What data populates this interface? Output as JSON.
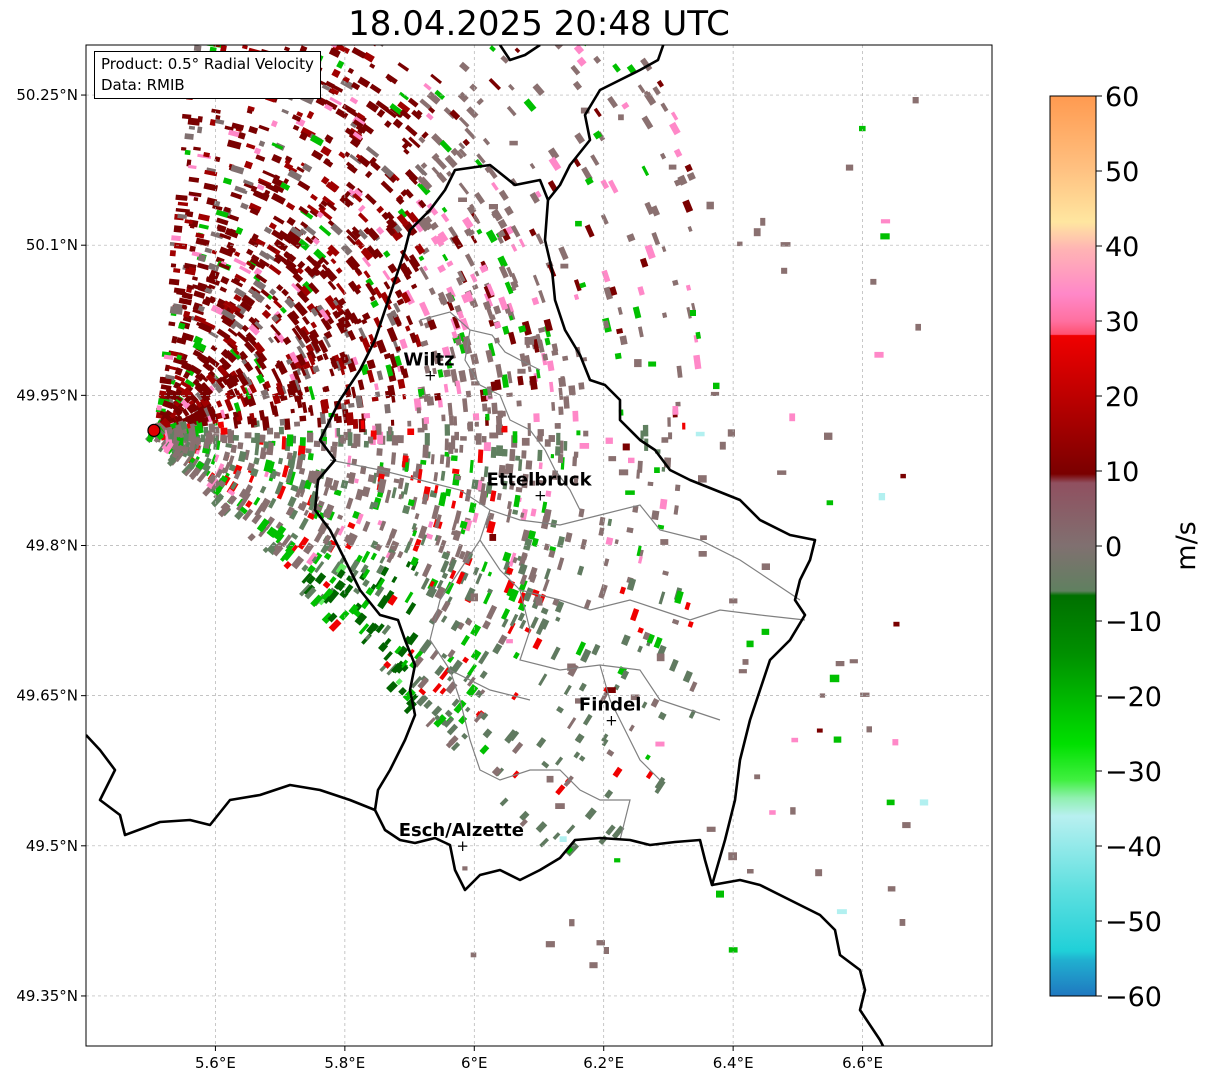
{
  "title": "18.04.2025 20:48 UTC",
  "info": {
    "product": "Product: 0.5° Radial Velocity",
    "source": "Data: RMIB"
  },
  "map": {
    "lon_range": [
      5.4,
      6.8
    ],
    "lat_range": [
      49.3,
      50.3
    ],
    "x_ticks": [
      "5.6°E",
      "5.8°E",
      "6°E",
      "6.2°E",
      "6.4°E",
      "6.6°E"
    ],
    "y_ticks": [
      "50.25°N",
      "50.1°N",
      "49.95°N",
      "49.8°N",
      "49.65°N",
      "49.5°N",
      "49.35°N"
    ],
    "gridlines": true,
    "radar_site": {
      "lon": 5.505,
      "lat": 49.915,
      "color": "#e00000"
    },
    "cities": [
      {
        "name": "Wiltz",
        "lon": 5.93,
        "lat": 49.97
      },
      {
        "name": "Ettelbruck",
        "lon": 6.1,
        "lat": 49.85
      },
      {
        "name": "Findel",
        "lon": 6.21,
        "lat": 49.625
      },
      {
        "name": "Esch/Alzette",
        "lon": 5.98,
        "lat": 49.5
      }
    ]
  },
  "colorbar": {
    "label": "m/s",
    "ticks": [
      "60",
      "50",
      "40",
      "30",
      "20",
      "10",
      "0",
      "−10",
      "−20",
      "−30",
      "−40",
      "−50",
      "−60"
    ],
    "range": [
      -60,
      60
    ],
    "colors": {
      "neg_strong": "#1f77c0",
      "neg_cyan": "#30dede",
      "neg_light": "#b2f0f0",
      "neg_green_light": "#60f060",
      "neg_green": "#00c000",
      "neg_dark": "#006400",
      "zero": "#708070",
      "pos_dark": "#7a0000",
      "pos_red": "#f00000",
      "pos_pink": "#ff88c8",
      "pos_orange": "#ffa050"
    }
  }
}
